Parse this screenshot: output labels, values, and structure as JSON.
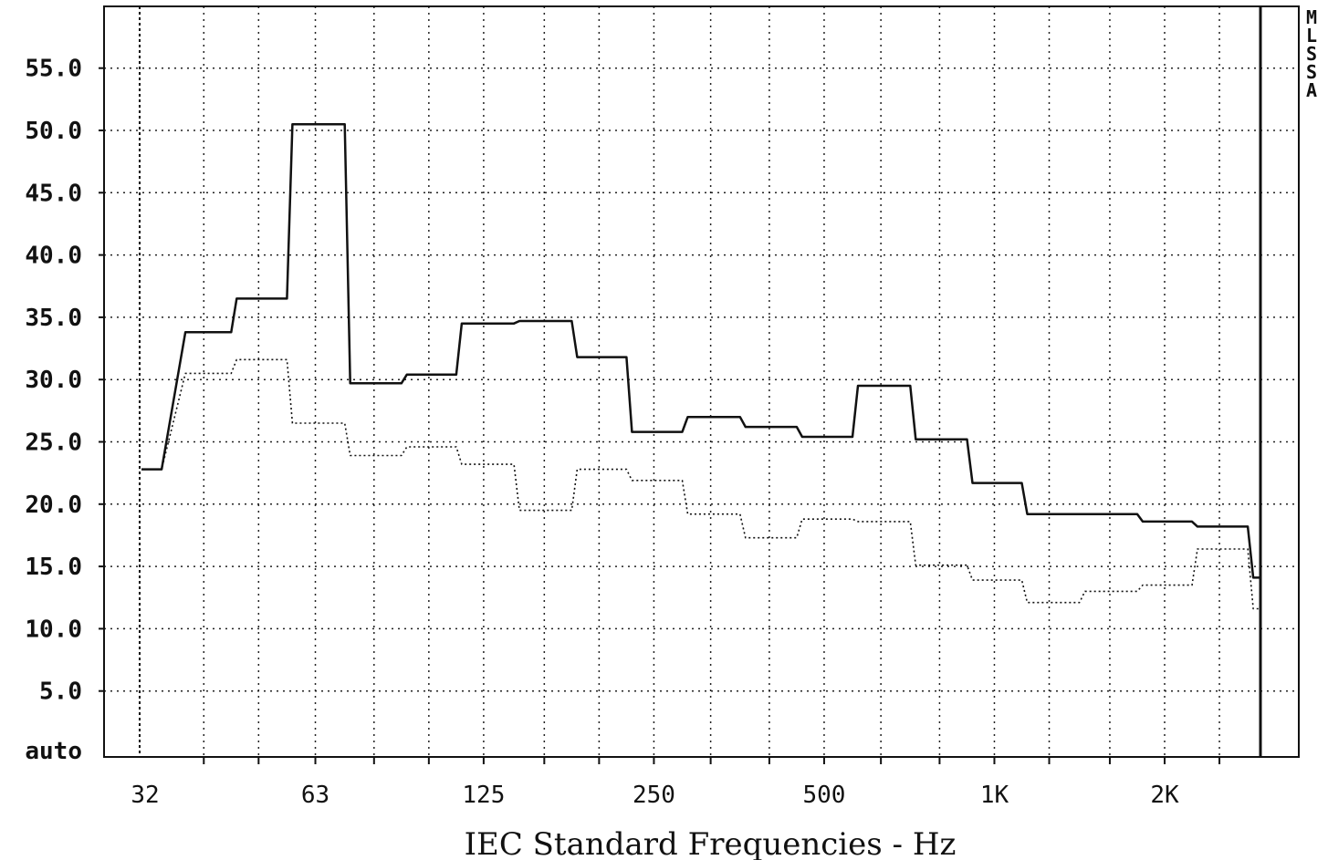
{
  "chart_data": {
    "type": "line",
    "title": "",
    "xlabel": "IEC Standard Frequencies - Hz",
    "ylabel": "",
    "x_scale": "log",
    "x_ticks": [
      {
        "label": "32",
        "value": 31.5
      },
      {
        "label": "63",
        "value": 63
      },
      {
        "label": "125",
        "value": 125
      },
      {
        "label": "250",
        "value": 250
      },
      {
        "label": "500",
        "value": 500
      },
      {
        "label": "1K",
        "value": 1000
      },
      {
        "label": "2K",
        "value": 2000
      }
    ],
    "y_ticks": [
      "auto",
      "5.0",
      "10.0",
      "15.0",
      "20.0",
      "25.0",
      "30.0",
      "35.0",
      "40.0",
      "45.0",
      "50.0",
      "55.0"
    ],
    "ylim": [
      0,
      60
    ],
    "grid": true,
    "logo": "MLSSA",
    "bands": [
      31.5,
      40,
      50,
      63,
      80,
      100,
      125,
      160,
      200,
      250,
      315,
      400,
      500,
      630,
      800,
      1000,
      1250,
      1600,
      2000,
      2500,
      3150
    ],
    "series": [
      {
        "style": "solid",
        "values": [
          22.8,
          33.8,
          36.5,
          50.5,
          29.7,
          30.4,
          34.5,
          34.7,
          31.8,
          25.8,
          27.0,
          26.2,
          25.4,
          29.5,
          25.2,
          21.7,
          19.2,
          19.2,
          18.6,
          18.2,
          14.1
        ]
      },
      {
        "style": "dotted",
        "values": [
          22.8,
          30.5,
          31.6,
          26.5,
          23.9,
          24.6,
          23.2,
          19.5,
          22.8,
          21.9,
          19.2,
          17.3,
          18.8,
          18.6,
          15.1,
          13.9,
          12.1,
          13.0,
          13.5,
          16.4,
          11.6
        ]
      }
    ]
  }
}
